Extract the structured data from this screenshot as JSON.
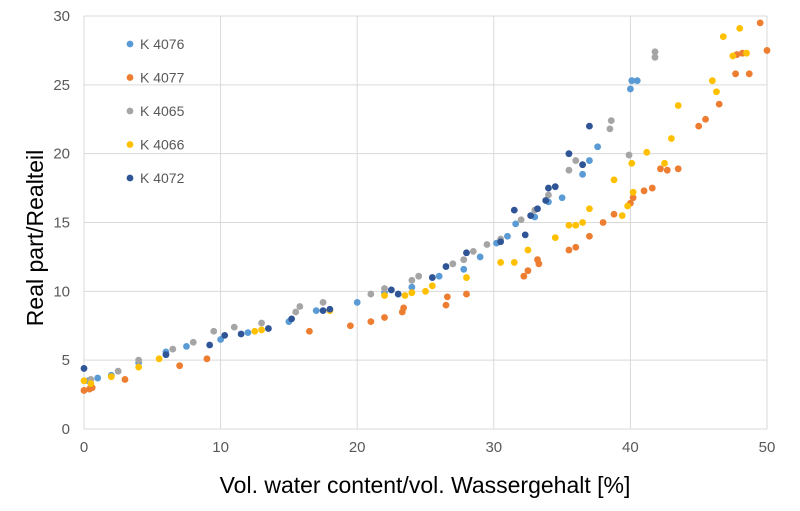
{
  "chart_data": {
    "type": "scatter",
    "xlabel": "Vol. water content/vol. Wassergehalt  [%]",
    "ylabel": "Real part/Realteil",
    "xlim": [
      0,
      50
    ],
    "ylim": [
      0,
      30
    ],
    "xticks": [
      0,
      10,
      20,
      30,
      40,
      50
    ],
    "yticks": [
      0,
      5,
      10,
      15,
      20,
      25,
      30
    ],
    "xtick_labels": [
      "0",
      "10",
      "20",
      "30",
      "40",
      "50"
    ],
    "ytick_labels": [
      "0",
      "5",
      "10",
      "15",
      "20",
      "25",
      "30"
    ],
    "grid": "horizontal and vertical",
    "legend_position": "top-left",
    "series": [
      {
        "name": "K 4076",
        "color": "#5b9bd5",
        "points": [
          [
            0.3,
            3.5
          ],
          [
            1,
            3.7
          ],
          [
            2,
            3.9
          ],
          [
            4,
            4.8
          ],
          [
            6,
            5.6
          ],
          [
            7.5,
            6.0
          ],
          [
            10,
            6.5
          ],
          [
            12,
            7.0
          ],
          [
            15,
            7.8
          ],
          [
            17,
            8.6
          ],
          [
            20,
            9.2
          ],
          [
            22,
            9.9
          ],
          [
            24,
            10.3
          ],
          [
            26,
            11.1
          ],
          [
            27.8,
            11.6
          ],
          [
            29,
            12.5
          ],
          [
            30.2,
            13.5
          ],
          [
            31,
            14.0
          ],
          [
            31.6,
            14.9
          ],
          [
            33,
            15.4
          ],
          [
            34,
            16.5
          ],
          [
            35,
            16.8
          ],
          [
            36.5,
            18.5
          ],
          [
            37,
            19.5
          ],
          [
            37.6,
            20.5
          ],
          [
            40,
            24.7
          ],
          [
            40.5,
            25.3
          ],
          [
            40.1,
            25.3
          ]
        ]
      },
      {
        "name": "K 4077",
        "color": "#ed7d31",
        "points": [
          [
            0,
            2.8
          ],
          [
            0.4,
            2.9
          ],
          [
            0.6,
            3.0
          ],
          [
            3,
            3.6
          ],
          [
            7,
            4.6
          ],
          [
            9,
            5.1
          ],
          [
            16.5,
            7.1
          ],
          [
            19.5,
            7.5
          ],
          [
            21,
            7.8
          ],
          [
            22,
            8.1
          ],
          [
            23.3,
            8.5
          ],
          [
            23.4,
            8.8
          ],
          [
            26.5,
            9.0
          ],
          [
            26.6,
            9.6
          ],
          [
            28,
            9.8
          ],
          [
            32.2,
            11.1
          ],
          [
            32.5,
            11.5
          ],
          [
            33.3,
            12.0
          ],
          [
            33.2,
            12.3
          ],
          [
            35.5,
            13.0
          ],
          [
            36,
            13.2
          ],
          [
            37,
            14.0
          ],
          [
            38,
            15.0
          ],
          [
            38.8,
            15.6
          ],
          [
            40,
            16.4
          ],
          [
            40.2,
            16.8
          ],
          [
            41,
            17.3
          ],
          [
            41.6,
            17.5
          ],
          [
            42.2,
            18.9
          ],
          [
            42.7,
            18.8
          ],
          [
            43.5,
            18.9
          ],
          [
            45,
            22.0
          ],
          [
            45.5,
            22.5
          ],
          [
            46.5,
            23.6
          ],
          [
            47.7,
            25.8
          ],
          [
            48.7,
            25.8
          ],
          [
            47.8,
            27.2
          ],
          [
            48.2,
            27.3
          ],
          [
            49.5,
            29.5
          ],
          [
            50,
            27.5
          ]
        ]
      },
      {
        "name": "K 4065",
        "color": "#a5a5a5",
        "points": [
          [
            0.5,
            3.6
          ],
          [
            2.5,
            4.2
          ],
          [
            4,
            5.0
          ],
          [
            6.5,
            5.8
          ],
          [
            8,
            6.3
          ],
          [
            9.5,
            7.1
          ],
          [
            11,
            7.4
          ],
          [
            13,
            7.7
          ],
          [
            15.5,
            8.5
          ],
          [
            15.8,
            8.9
          ],
          [
            17.5,
            9.2
          ],
          [
            21,
            9.8
          ],
          [
            22,
            10.2
          ],
          [
            24,
            10.8
          ],
          [
            24.5,
            11.1
          ],
          [
            27,
            12.0
          ],
          [
            27.8,
            12.3
          ],
          [
            28.5,
            12.9
          ],
          [
            29.5,
            13.4
          ],
          [
            30.5,
            13.8
          ],
          [
            32,
            15.2
          ],
          [
            33,
            15.9
          ],
          [
            34,
            17.0
          ],
          [
            35.5,
            18.8
          ],
          [
            36,
            19.5
          ],
          [
            38.5,
            21.8
          ],
          [
            38.6,
            22.4
          ],
          [
            39.9,
            19.9
          ],
          [
            41.8,
            27.0
          ],
          [
            41.8,
            27.4
          ]
        ]
      },
      {
        "name": "K 4066",
        "color": "#ffc000",
        "points": [
          [
            0,
            3.5
          ],
          [
            0.5,
            3.3
          ],
          [
            2,
            3.8
          ],
          [
            4,
            4.5
          ],
          [
            5.5,
            5.1
          ],
          [
            12.5,
            7.1
          ],
          [
            13,
            7.2
          ],
          [
            18,
            8.6
          ],
          [
            22,
            9.7
          ],
          [
            23.5,
            9.7
          ],
          [
            24,
            9.9
          ],
          [
            25,
            10.0
          ],
          [
            25.5,
            10.4
          ],
          [
            28,
            11.0
          ],
          [
            30.5,
            12.1
          ],
          [
            31.5,
            12.1
          ],
          [
            32.5,
            13.0
          ],
          [
            34.5,
            13.9
          ],
          [
            35.5,
            14.8
          ],
          [
            36,
            14.8
          ],
          [
            36.5,
            15.0
          ],
          [
            37,
            16.0
          ],
          [
            38.8,
            18.1
          ],
          [
            39.4,
            15.5
          ],
          [
            39.8,
            16.2
          ],
          [
            40.2,
            17.2
          ],
          [
            40.1,
            19.3
          ],
          [
            41.2,
            20.1
          ],
          [
            42.5,
            19.3
          ],
          [
            43,
            21.1
          ],
          [
            43.5,
            23.5
          ],
          [
            46,
            25.3
          ],
          [
            46.3,
            24.5
          ],
          [
            46.8,
            28.5
          ],
          [
            47.5,
            27.1
          ],
          [
            48,
            29.1
          ],
          [
            48.5,
            27.3
          ]
        ]
      },
      {
        "name": "K 4072",
        "color": "#2f5597",
        "points": [
          [
            0,
            4.4
          ],
          [
            6,
            5.4
          ],
          [
            9.2,
            6.1
          ],
          [
            10.3,
            6.8
          ],
          [
            11.5,
            6.9
          ],
          [
            13.5,
            7.3
          ],
          [
            15.2,
            8.0
          ],
          [
            17.5,
            8.6
          ],
          [
            18,
            8.7
          ],
          [
            22.5,
            10.1
          ],
          [
            23,
            9.8
          ],
          [
            25.5,
            11.0
          ],
          [
            26.5,
            11.8
          ],
          [
            28,
            12.8
          ],
          [
            30.5,
            13.6
          ],
          [
            31.5,
            15.9
          ],
          [
            32.3,
            14.1
          ],
          [
            32.7,
            15.5
          ],
          [
            33.2,
            16.0
          ],
          [
            33.8,
            16.6
          ],
          [
            34,
            17.5
          ],
          [
            34.5,
            17.6
          ],
          [
            35.5,
            20.0
          ],
          [
            36.5,
            19.2
          ],
          [
            37,
            22.0
          ]
        ]
      }
    ]
  }
}
